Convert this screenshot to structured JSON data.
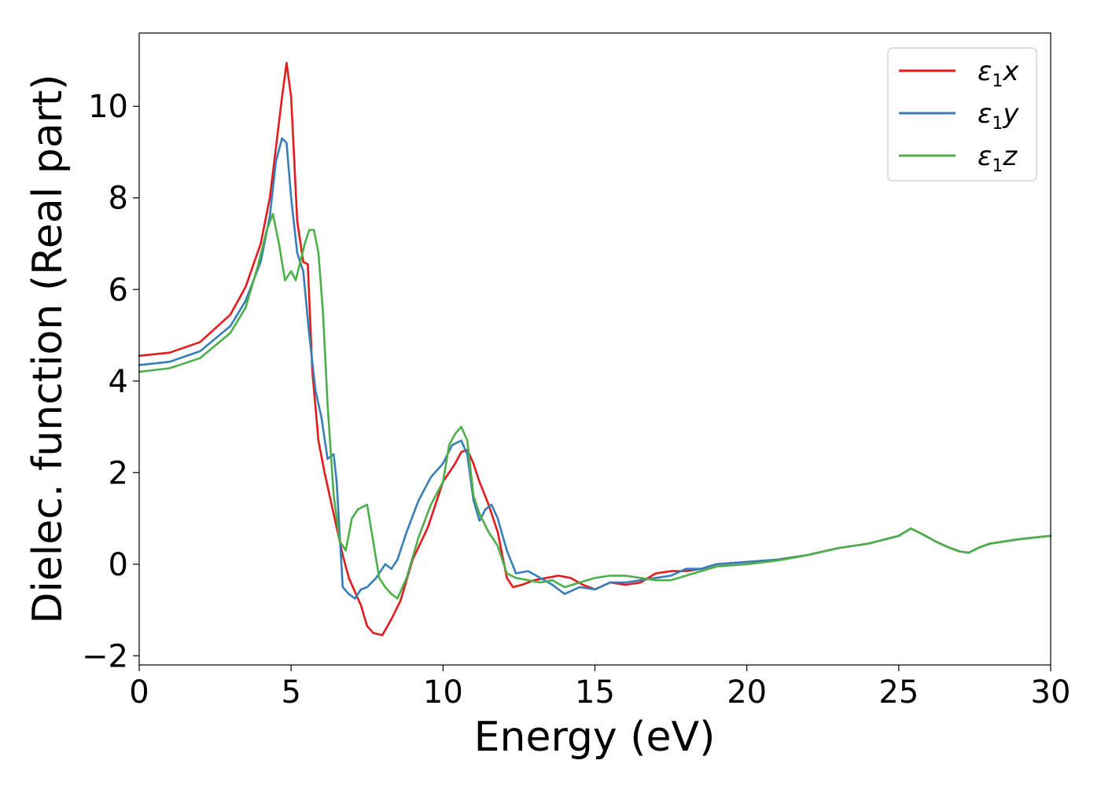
{
  "chart_data": {
    "type": "line",
    "xlabel": "Energy (eV)",
    "ylabel": "Dielec. function (Real part)",
    "xlim": [
      0,
      30
    ],
    "ylim": [
      -2.2,
      11.6
    ],
    "xticks": [
      0,
      5,
      10,
      15,
      20,
      25,
      30
    ],
    "xtick_labels": [
      "0",
      "5",
      "10",
      "15",
      "20",
      "25",
      "30"
    ],
    "yticks": [
      -2,
      0,
      2,
      4,
      6,
      8,
      10
    ],
    "ytick_labels": [
      "−2",
      "0",
      "2",
      "4",
      "6",
      "8",
      "10"
    ],
    "grid": false,
    "legend_position": "top-right",
    "series": [
      {
        "name": "ε₁x",
        "legend_base": "ε",
        "legend_sub": "1",
        "legend_suffix": "x",
        "color": "#e41a1c",
        "x": [
          0,
          1,
          2,
          3,
          3.5,
          4,
          4.3,
          4.5,
          4.7,
          4.85,
          5.0,
          5.2,
          5.4,
          5.55,
          5.7,
          5.9,
          6.1,
          6.3,
          6.5,
          6.7,
          6.9,
          7.1,
          7.3,
          7.5,
          7.7,
          8.0,
          8.3,
          8.6,
          9.0,
          9.5,
          10.0,
          10.4,
          10.6,
          10.8,
          11.0,
          11.2,
          11.5,
          11.8,
          12.1,
          12.3,
          12.6,
          13.0,
          13.4,
          13.8,
          14.2,
          14.6,
          15.0,
          15.5,
          16.0,
          16.5,
          17.0,
          17.5,
          18.0,
          18.5,
          19.0,
          20.0,
          21.0,
          22.0,
          23.0,
          24.0,
          25.0,
          25.4,
          25.8,
          26.2,
          26.6,
          27.0,
          27.3,
          27.6,
          28.0,
          29.0,
          30.0
        ],
        "y": [
          4.55,
          4.62,
          4.85,
          5.45,
          6.05,
          7.0,
          8.0,
          9.1,
          10.2,
          10.95,
          10.2,
          7.5,
          6.6,
          6.55,
          4.2,
          2.7,
          2.0,
          1.4,
          0.8,
          0.2,
          -0.3,
          -0.6,
          -0.9,
          -1.35,
          -1.5,
          -1.55,
          -1.2,
          -0.8,
          0.1,
          0.8,
          1.8,
          2.2,
          2.45,
          2.5,
          2.2,
          1.8,
          1.3,
          0.7,
          -0.3,
          -0.5,
          -0.45,
          -0.35,
          -0.3,
          -0.25,
          -0.3,
          -0.45,
          -0.55,
          -0.4,
          -0.45,
          -0.4,
          -0.2,
          -0.15,
          -0.15,
          -0.1,
          0.0,
          0.05,
          0.1,
          0.2,
          0.35,
          0.45,
          0.62,
          0.78,
          0.65,
          0.5,
          0.38,
          0.28,
          0.25,
          0.35,
          0.45,
          0.55,
          0.62
        ]
      },
      {
        "name": "ε₁y",
        "legend_base": "ε",
        "legend_sub": "1",
        "legend_suffix": "y",
        "color": "#377eb8",
        "x": [
          0,
          1,
          2,
          3,
          3.5,
          4,
          4.3,
          4.5,
          4.7,
          4.85,
          5.0,
          5.2,
          5.4,
          5.6,
          5.8,
          6.0,
          6.2,
          6.4,
          6.5,
          6.7,
          6.9,
          7.1,
          7.3,
          7.5,
          7.8,
          8.1,
          8.3,
          8.5,
          8.8,
          9.2,
          9.6,
          10.0,
          10.3,
          10.6,
          10.8,
          11.0,
          11.2,
          11.4,
          11.6,
          11.8,
          12.1,
          12.4,
          12.8,
          13.2,
          13.6,
          14.0,
          14.5,
          15.0,
          15.5,
          16.0,
          16.5,
          17.0,
          17.5,
          18.0,
          18.5,
          19.0,
          20.0,
          21.0,
          22.0,
          23.0,
          24.0,
          25.0,
          25.4,
          25.8,
          26.2,
          26.6,
          27.0,
          27.3,
          27.6,
          28.0,
          29.0,
          30.0
        ],
        "y": [
          4.35,
          4.42,
          4.65,
          5.2,
          5.75,
          6.6,
          7.6,
          8.8,
          9.3,
          9.2,
          8.0,
          6.8,
          6.4,
          5.0,
          3.8,
          3.2,
          2.3,
          2.4,
          1.8,
          -0.5,
          -0.65,
          -0.75,
          -0.55,
          -0.5,
          -0.3,
          0.0,
          -0.1,
          0.1,
          0.7,
          1.4,
          1.9,
          2.2,
          2.6,
          2.7,
          2.4,
          1.4,
          0.95,
          1.2,
          1.3,
          1.0,
          0.3,
          -0.2,
          -0.15,
          -0.3,
          -0.45,
          -0.65,
          -0.5,
          -0.55,
          -0.4,
          -0.4,
          -0.35,
          -0.3,
          -0.25,
          -0.1,
          -0.1,
          0.0,
          0.05,
          0.1,
          0.2,
          0.35,
          0.45,
          0.62,
          0.78,
          0.65,
          0.5,
          0.38,
          0.28,
          0.25,
          0.35,
          0.45,
          0.55,
          0.62
        ]
      },
      {
        "name": "ε₁z",
        "legend_base": "ε",
        "legend_sub": "1",
        "legend_suffix": "z",
        "color": "#4daf4a",
        "x": [
          0,
          1,
          2,
          3,
          3.5,
          3.9,
          4.2,
          4.4,
          4.6,
          4.8,
          5.0,
          5.15,
          5.3,
          5.45,
          5.6,
          5.75,
          5.9,
          6.05,
          6.2,
          6.4,
          6.6,
          6.8,
          7.0,
          7.2,
          7.5,
          7.7,
          7.9,
          8.1,
          8.3,
          8.5,
          8.8,
          9.2,
          9.6,
          10.0,
          10.2,
          10.4,
          10.6,
          10.8,
          11.0,
          11.2,
          11.5,
          11.8,
          12.1,
          12.4,
          12.8,
          13.2,
          13.6,
          14.0,
          14.5,
          15.0,
          15.5,
          16.0,
          16.5,
          17.0,
          17.5,
          18.0,
          18.5,
          19.0,
          20.0,
          21.0,
          22.0,
          23.0,
          24.0,
          25.0,
          25.4,
          25.8,
          26.2,
          26.6,
          27.0,
          27.3,
          27.6,
          28.0,
          29.0,
          30.0
        ],
        "y": [
          4.2,
          4.28,
          4.5,
          5.05,
          5.6,
          6.5,
          7.3,
          7.65,
          7.0,
          6.2,
          6.4,
          6.2,
          6.6,
          7.0,
          7.3,
          7.3,
          6.8,
          5.5,
          3.5,
          1.5,
          0.5,
          0.3,
          1.0,
          1.2,
          1.3,
          0.5,
          -0.3,
          -0.5,
          -0.65,
          -0.75,
          -0.3,
          0.6,
          1.3,
          1.8,
          2.6,
          2.85,
          3.0,
          2.7,
          1.5,
          1.1,
          0.7,
          0.4,
          -0.2,
          -0.3,
          -0.35,
          -0.4,
          -0.35,
          -0.5,
          -0.4,
          -0.3,
          -0.25,
          -0.25,
          -0.3,
          -0.35,
          -0.35,
          -0.25,
          -0.15,
          -0.05,
          0.0,
          0.08,
          0.2,
          0.35,
          0.45,
          0.62,
          0.78,
          0.65,
          0.5,
          0.38,
          0.28,
          0.25,
          0.35,
          0.45,
          0.55,
          0.62
        ]
      }
    ]
  }
}
